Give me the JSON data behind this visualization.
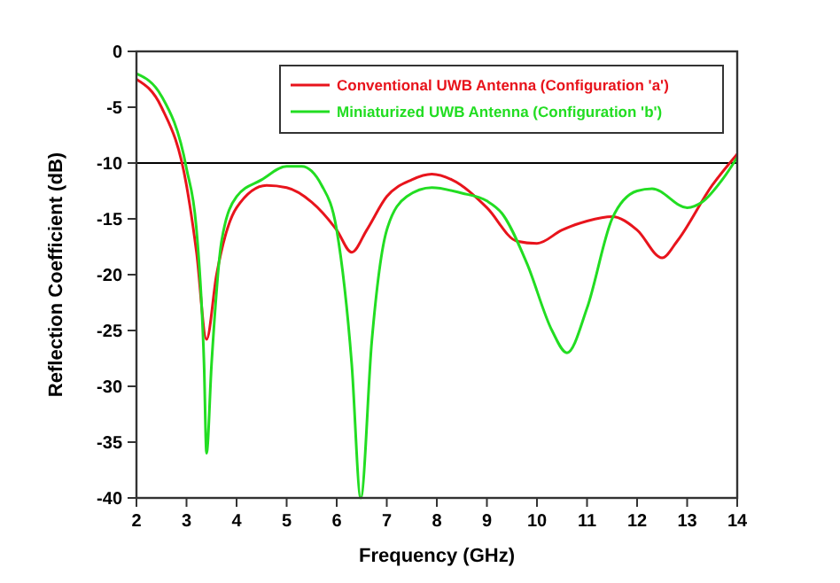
{
  "chart_data": {
    "type": "line",
    "xlabel": "Frequency (GHz)",
    "ylabel": "Reflection Coefficient (dB)",
    "xlim": [
      2,
      14
    ],
    "xticks": [
      2,
      3,
      4,
      5,
      6,
      7,
      8,
      9,
      10,
      11,
      12,
      13,
      14
    ],
    "ylim": [
      -40,
      0
    ],
    "yticks": [
      -40,
      -35,
      -30,
      -25,
      -20,
      -15,
      -10,
      -5,
      0
    ],
    "legend": "top right",
    "grid": false,
    "ref_lines": [
      {
        "axis": "y",
        "value": -10,
        "color": "#000000"
      }
    ],
    "series": [
      {
        "name": "Conventional UWB Antenna (Configuration 'a')",
        "color": "#e8141c",
        "x": [
          2,
          2.5,
          3,
          3.2,
          3.4,
          3.6,
          4,
          4.6,
          5,
          5.5,
          6,
          6.3,
          6.6,
          7,
          7.5,
          7.9,
          8.3,
          9,
          9.6,
          10,
          10.5,
          11,
          11.5,
          12,
          12.5,
          12.8,
          13.5,
          14
        ],
        "values": [
          -2.5,
          -5,
          -12,
          -18,
          -25.8,
          -20,
          -14,
          -12,
          -12.2,
          -13.5,
          -16,
          -18,
          -16,
          -13,
          -11.5,
          -11,
          -11.5,
          -14,
          -17,
          -17.2,
          -16,
          -15.2,
          -14.8,
          -16,
          -18.5,
          -17,
          -12,
          -9.2
        ]
      },
      {
        "name": "Miniaturized UWB Antenna (Configuration 'b')",
        "color": "#22dd22",
        "x": [
          2,
          2.5,
          3,
          3.2,
          3.35,
          3.4,
          3.5,
          3.7,
          4,
          4.5,
          5,
          5.3,
          5.7,
          6,
          6.3,
          6.48,
          6.7,
          7,
          7.4,
          7.9,
          8.5,
          9,
          9.3,
          9.8,
          10.3,
          10.6,
          11,
          11.5,
          12,
          12.3,
          13,
          13.3,
          13.7,
          14
        ],
        "values": [
          -2,
          -4,
          -10.5,
          -16,
          -28,
          -36,
          -28,
          -17,
          -13,
          -11.5,
          -10.3,
          -10.3,
          -12,
          -16,
          -28,
          -40,
          -26,
          -16,
          -13,
          -12.2,
          -12.7,
          -13.4,
          -14.5,
          -19,
          -25,
          -27,
          -23,
          -15,
          -12.5,
          -12.3,
          -14,
          -13.5,
          -11.5,
          -9.5
        ]
      }
    ]
  }
}
